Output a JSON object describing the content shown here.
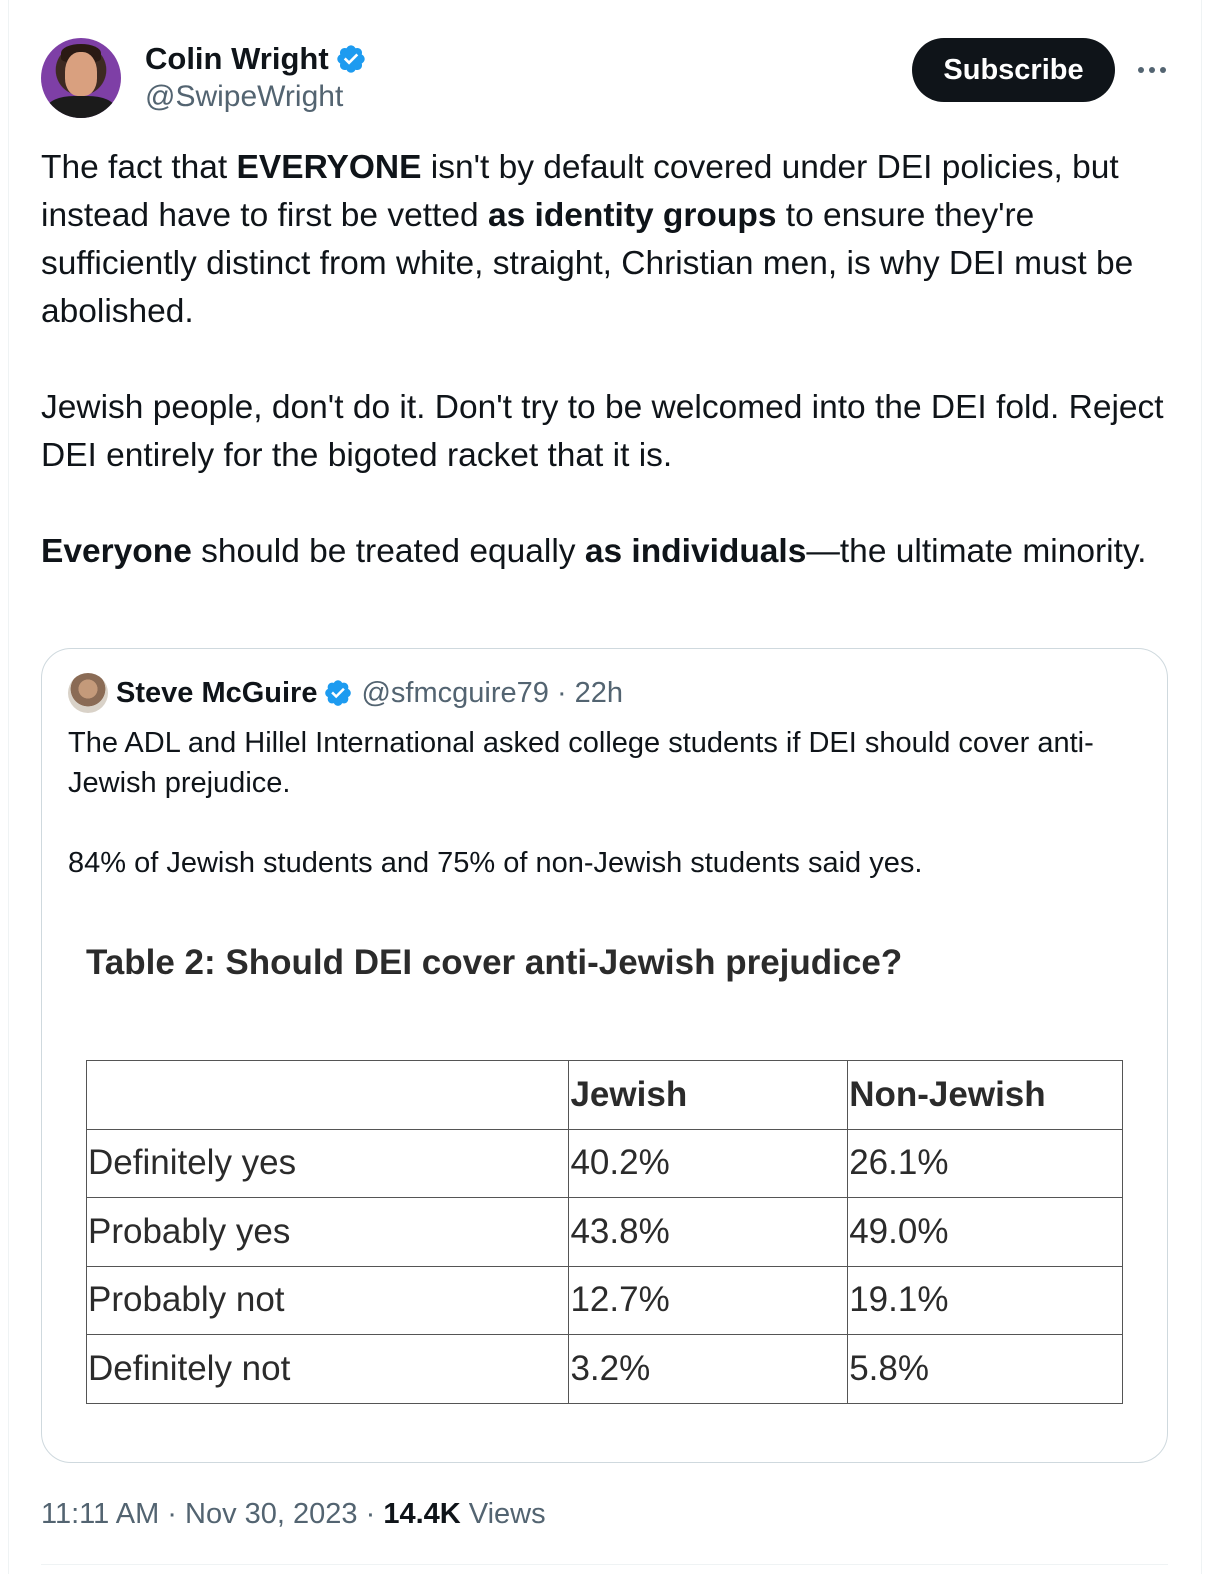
{
  "author": {
    "display_name": "Colin Wright",
    "handle": "@SwipeWright",
    "verified": true
  },
  "actions": {
    "subscribe_label": "Subscribe",
    "more_icon": "more-horizontal-icon"
  },
  "tweet": {
    "p1": {
      "a": "The fact that ",
      "b": "EVERYONE",
      "c": " isn't by default covered under DEI policies, but instead have to first be vetted ",
      "d": "as identity groups",
      "e": " to ensure they're sufficiently distinct from white, straight, Christian men, is why DEI must be abolished."
    },
    "p2": "Jewish people, don't do it. Don't try to be welcomed into the DEI fold. Reject DEI entirely for the bigoted racket that it is.",
    "p3": {
      "a": "Everyone",
      "b": " should be treated equally ",
      "c": "as individuals",
      "d": "—the ultimate minority."
    }
  },
  "quote": {
    "display_name": "Steve McGuire",
    "handle": "@sfmcguire79",
    "separator": " · ",
    "time": "22h",
    "text1": "The ADL and Hillel International asked college students if DEI should cover anti-Jewish prejudice.",
    "text2": "84% of Jewish students and 75% of non-Jewish students said yes.",
    "table": {
      "title": "Table 2: Should DEI cover anti-Jewish prejudice?",
      "headers": [
        "",
        "Jewish",
        "Non-Jewish"
      ],
      "rows": [
        [
          "Definitely yes",
          "40.2%",
          "26.1%"
        ],
        [
          "Probably yes",
          "43.8%",
          "49.0%"
        ],
        [
          "Probably not",
          "12.7%",
          "19.1%"
        ],
        [
          "Definitely not",
          "3.2%",
          "5.8%"
        ]
      ]
    }
  },
  "meta": {
    "time": "11:11 AM",
    "sep1": " · ",
    "date": "Nov 30, 2023",
    "sep2": " · ",
    "views_count": "14.4K",
    "views_label": " Views"
  },
  "colors": {
    "verified_blue": "#1d9bf0",
    "text_primary": "#0f1419",
    "text_secondary": "#536471",
    "border": "#cfd9de"
  }
}
